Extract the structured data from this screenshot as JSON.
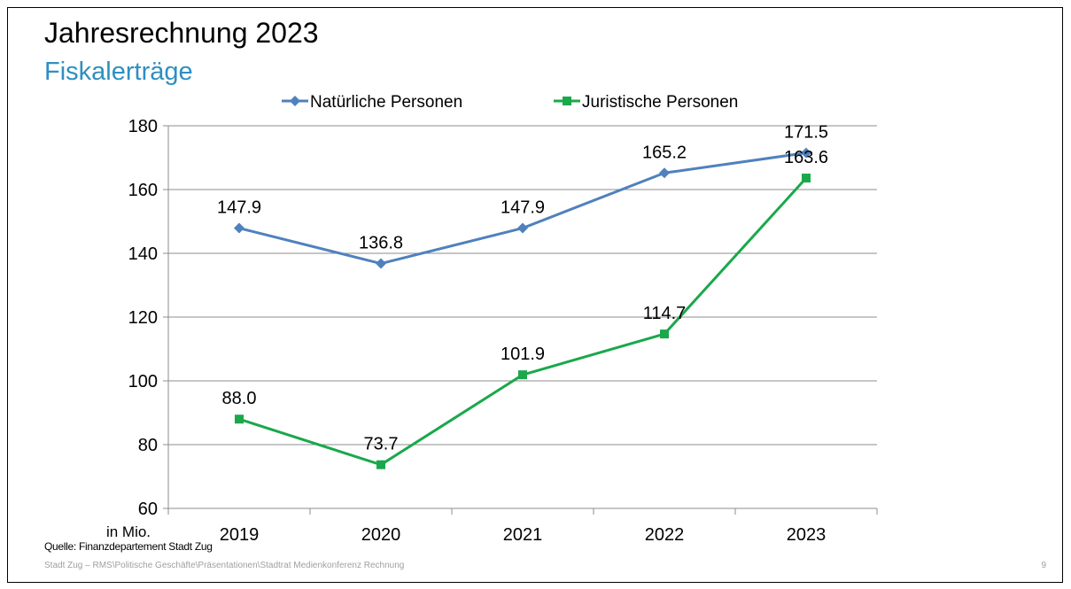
{
  "slide": {
    "title": "Jahresrechnung 2023",
    "subtitle": "Fiskalerträge",
    "source": "Quelle: Finanzdepartement Stadt Zug",
    "footer": "Stadt Zug – RMS\\Politische Geschäfte\\Präsentationen\\Stadtrat Medienkonferenz Rechnung",
    "page_number": "9"
  },
  "chart_data": {
    "type": "line",
    "title": "",
    "xlabel": "",
    "ylabel": "in Mio.",
    "categories": [
      "2019",
      "2020",
      "2021",
      "2022",
      "2023"
    ],
    "ylim": [
      60,
      180
    ],
    "yticks": [
      60,
      80,
      100,
      120,
      140,
      160,
      180
    ],
    "grid": true,
    "legend_position": "top",
    "series": [
      {
        "name": "Natürliche Personen",
        "values": [
          147.9,
          136.8,
          147.9,
          165.2,
          171.5
        ],
        "labels": [
          "147.9",
          "136.8",
          "147.9",
          "165.2",
          "171.5"
        ],
        "color": "#4f81bd",
        "marker": "diamond"
      },
      {
        "name": "Juristische Personen",
        "values": [
          88.0,
          73.7,
          101.9,
          114.7,
          163.6
        ],
        "labels": [
          "88.0",
          "73.7",
          "101.9",
          "114.7",
          "163.6"
        ],
        "color": "#1aa84b",
        "marker": "square"
      }
    ]
  }
}
